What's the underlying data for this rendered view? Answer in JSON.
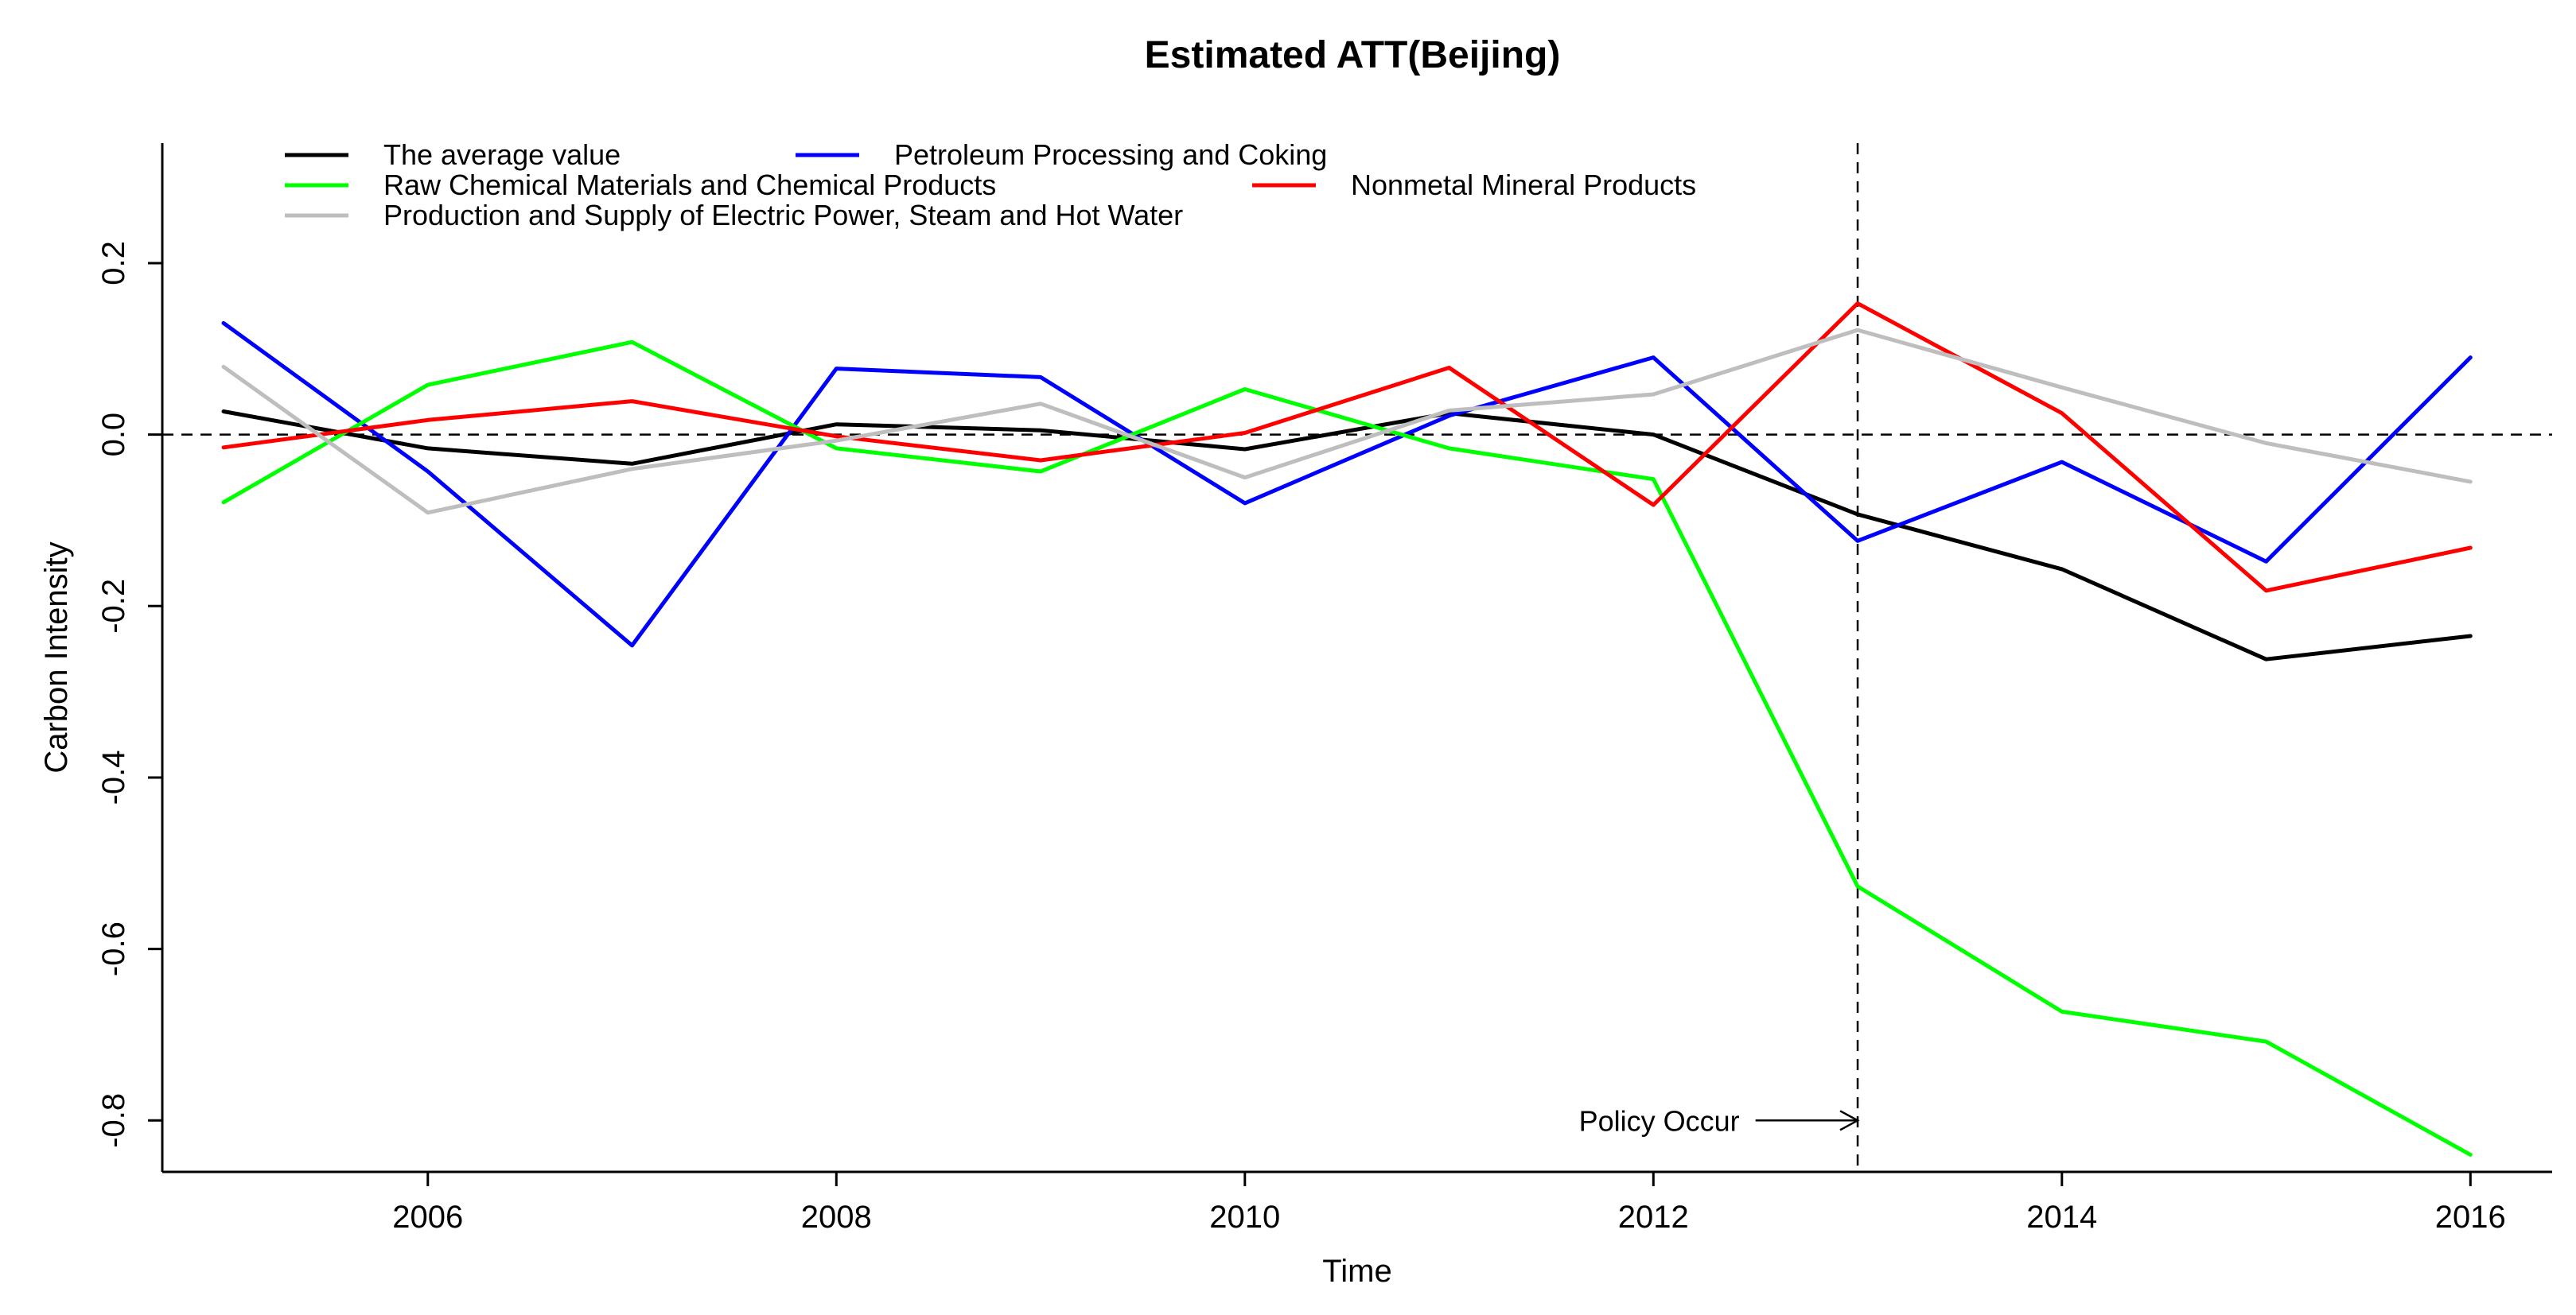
{
  "chart_data": {
    "type": "line",
    "title": "Estimated ATT(Beijing)",
    "xlabel": "Time",
    "ylabel": "Carbon Intensity",
    "xlim": [
      2004.7,
      2016.4
    ],
    "ylim": [
      -0.86,
      0.34
    ],
    "x_ticks": [
      2006,
      2008,
      2010,
      2012,
      2014,
      2016
    ],
    "y_ticks": [
      0.2,
      0.0,
      -0.2,
      -0.4,
      -0.6,
      -0.8
    ],
    "x_tick_labels": [
      "2006",
      "2008",
      "2010",
      "2012",
      "2014",
      "2016"
    ],
    "y_tick_labels": [
      "0.2",
      "0.0",
      "-0.2",
      "-0.4",
      "-0.6",
      "-0.8"
    ],
    "x": [
      2005,
      2006,
      2007,
      2008,
      2009,
      2010,
      2011,
      2012,
      2013,
      2014,
      2015,
      2016
    ],
    "series": [
      {
        "name": "The average value",
        "color": "#000000",
        "values": [
          0.027,
          -0.016,
          -0.034,
          0.012,
          0.005,
          -0.017,
          0.025,
          0.0,
          -0.093,
          -0.157,
          -0.262,
          -0.235
        ]
      },
      {
        "name": "Petroleum Processing and Coking",
        "color": "#0000ff",
        "values": [
          0.13,
          -0.043,
          -0.246,
          0.077,
          0.067,
          -0.08,
          0.022,
          0.09,
          -0.124,
          -0.032,
          -0.148,
          0.09
        ]
      },
      {
        "name": "Raw Chemical Materials and Chemical Products",
        "color": "#00ff00",
        "values": [
          -0.079,
          0.058,
          0.108,
          -0.016,
          -0.043,
          0.053,
          -0.016,
          -0.052,
          -0.527,
          -0.673,
          -0.708,
          -0.84
        ]
      },
      {
        "name": "Nonmetal Mineral Products",
        "color": "#ff0000",
        "values": [
          -0.015,
          0.017,
          0.039,
          -0.002,
          -0.03,
          0.002,
          0.078,
          -0.082,
          0.153,
          0.025,
          -0.182,
          -0.132
        ]
      },
      {
        "name": "Production and Supply of Electric Power, Steam and Hot Water",
        "color": "#bebebe",
        "values": [
          0.079,
          -0.091,
          -0.04,
          -0.007,
          0.036,
          -0.05,
          0.028,
          0.047,
          0.122,
          0.055,
          -0.01,
          -0.055
        ]
      }
    ],
    "reference_lines": [
      {
        "orientation": "horizontal",
        "value": 0.0,
        "style": "dashed"
      },
      {
        "orientation": "vertical",
        "value": 2013,
        "style": "dashed"
      }
    ],
    "annotations": [
      {
        "text": "Policy Occur",
        "arrow_to_x": 2013,
        "arrow_from_x": 2012.5,
        "y": -0.8
      }
    ],
    "legend_position": "top-left",
    "grid": false
  }
}
